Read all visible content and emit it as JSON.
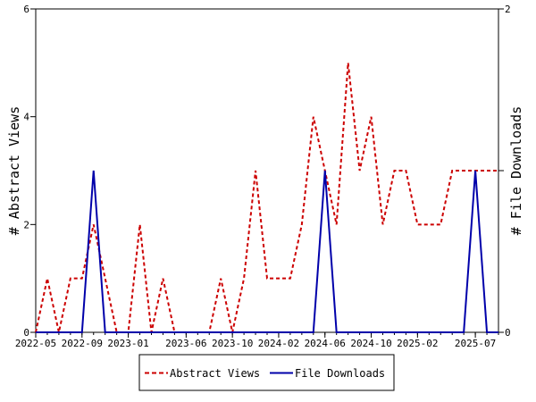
{
  "chart_data": {
    "type": "line",
    "title": "",
    "x_tick_labels": [
      "2022-05",
      "2022-09",
      "2023-01",
      "2023-06",
      "2023-10",
      "2024-02",
      "2024-06",
      "2024-10",
      "2025-02",
      "2025-07"
    ],
    "y_left": {
      "label": "# Abstract Views",
      "ylim": [
        0,
        6
      ],
      "ticks": [
        "0",
        "2",
        "4",
        "6"
      ]
    },
    "y_right": {
      "label": "# File Downloads",
      "ylim": [
        0,
        2
      ],
      "ticks": [
        "0",
        "1",
        "2"
      ]
    },
    "x": [
      "2022-05",
      "2022-06",
      "2022-07",
      "2022-08",
      "2022-09",
      "2022-10",
      "2022-11",
      "2022-12",
      "2023-01",
      "2023-02",
      "2023-03",
      "2023-04",
      "2023-05",
      "2023-06",
      "2023-07",
      "2023-08",
      "2023-09",
      "2023-10",
      "2023-11",
      "2023-12",
      "2024-01",
      "2024-02",
      "2024-03",
      "2024-04",
      "2024-05",
      "2024-06",
      "2024-07",
      "2024-08",
      "2024-09",
      "2024-10",
      "2024-11",
      "2024-12",
      "2025-01",
      "2025-02",
      "2025-03",
      "2025-04",
      "2025-05",
      "2025-06",
      "2025-07",
      "2025-08",
      "2025-09"
    ],
    "series": [
      {
        "name": "Abstract Views",
        "axis": "left",
        "color": "#cc0000",
        "dash": "dashed",
        "values": [
          0,
          1,
          0,
          1,
          1,
          2,
          1,
          0,
          0,
          2,
          0,
          1,
          0,
          0,
          0,
          0,
          1,
          0,
          1,
          3,
          1,
          1,
          1,
          2,
          4,
          3,
          2,
          5,
          3,
          4,
          2,
          3,
          3,
          2,
          2,
          2,
          3,
          3,
          3,
          3,
          3
        ]
      },
      {
        "name": "File Downloads",
        "axis": "right",
        "color": "#0000aa",
        "dash": "solid",
        "values": [
          0,
          0,
          0,
          0,
          0,
          1,
          0,
          0,
          0,
          0,
          0,
          0,
          0,
          0,
          0,
          0,
          0,
          0,
          0,
          0,
          0,
          0,
          0,
          0,
          0,
          1,
          0,
          0,
          0,
          0,
          0,
          0,
          0,
          0,
          0,
          0,
          0,
          0,
          1,
          0,
          0
        ]
      }
    ],
    "legend_position": "bottom-center",
    "grid": false
  }
}
